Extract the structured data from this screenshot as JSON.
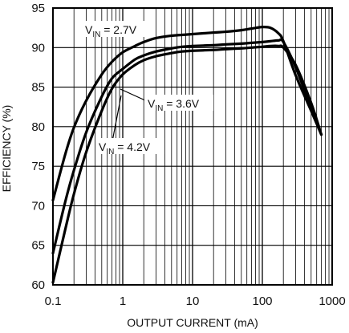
{
  "chart_data": {
    "type": "line",
    "xlabel": "OUTPUT CURRENT (mA)",
    "ylabel": "EFFICIENCY (%)",
    "xscale": "log",
    "xlim": [
      0.1,
      1000
    ],
    "ylim": [
      60,
      95
    ],
    "grid": true,
    "x_ticks": [
      {
        "value": 0.1,
        "label": "0.1"
      },
      {
        "value": 1,
        "label": "1"
      },
      {
        "value": 10,
        "label": "10"
      },
      {
        "value": 100,
        "label": "100"
      },
      {
        "value": 1000,
        "label": "1000"
      }
    ],
    "y_ticks": [
      {
        "value": 60,
        "label": "60"
      },
      {
        "value": 65,
        "label": "65"
      },
      {
        "value": 70,
        "label": "70"
      },
      {
        "value": 75,
        "label": "75"
      },
      {
        "value": 80,
        "label": "80"
      },
      {
        "value": 85,
        "label": "85"
      },
      {
        "value": 90,
        "label": "90"
      },
      {
        "value": 95,
        "label": "95"
      }
    ],
    "series": [
      {
        "name": "VIN = 2.7V",
        "label_main": "V",
        "label_sub": "IN",
        "label_rest": " = 2.7V",
        "color": "#000000",
        "x": [
          0.1,
          0.15,
          0.2,
          0.3,
          0.5,
          0.7,
          1,
          1.5,
          2,
          3,
          5,
          7,
          10,
          20,
          30,
          50,
          70,
          100,
          130,
          170,
          200,
          300,
          500,
          700
        ],
        "y": [
          70.7,
          76.5,
          79.9,
          83.3,
          86.6,
          88.2,
          89.4,
          90.2,
          90.7,
          91.2,
          91.5,
          91.6,
          91.7,
          91.9,
          92.0,
          92.2,
          92.4,
          92.6,
          92.5,
          91.8,
          90.8,
          86.5,
          82.0,
          79.0
        ]
      },
      {
        "name": "VIN = 3.6V",
        "label_main": "V",
        "label_sub": "IN",
        "label_rest": " = 3.6V",
        "color": "#000000",
        "x": [
          0.1,
          0.15,
          0.2,
          0.3,
          0.5,
          0.7,
          1,
          1.5,
          2,
          3,
          5,
          7,
          10,
          20,
          30,
          50,
          70,
          100,
          130,
          170,
          200,
          300,
          500,
          700
        ],
        "y": [
          64.0,
          70.5,
          74.5,
          79.3,
          83.8,
          86.1,
          87.3,
          88.5,
          89.0,
          89.5,
          89.9,
          90.1,
          90.2,
          90.3,
          90.4,
          90.5,
          90.6,
          90.7,
          90.8,
          90.9,
          90.7,
          87.5,
          82.3,
          79.0
        ]
      },
      {
        "name": "VIN = 4.2V",
        "label_main": "V",
        "label_sub": "IN",
        "label_rest": " = 4.2V",
        "color": "#000000",
        "x": [
          0.1,
          0.15,
          0.2,
          0.3,
          0.5,
          0.7,
          1,
          1.5,
          2,
          3,
          5,
          7,
          10,
          20,
          30,
          50,
          70,
          100,
          130,
          170,
          200,
          300,
          500,
          700
        ],
        "y": [
          60.3,
          67.0,
          71.5,
          76.8,
          82.0,
          84.8,
          86.6,
          87.8,
          88.4,
          88.9,
          89.3,
          89.5,
          89.6,
          89.7,
          89.8,
          89.9,
          90.0,
          90.1,
          90.2,
          90.2,
          90.0,
          87.8,
          83.0,
          79.0
        ]
      }
    ]
  }
}
